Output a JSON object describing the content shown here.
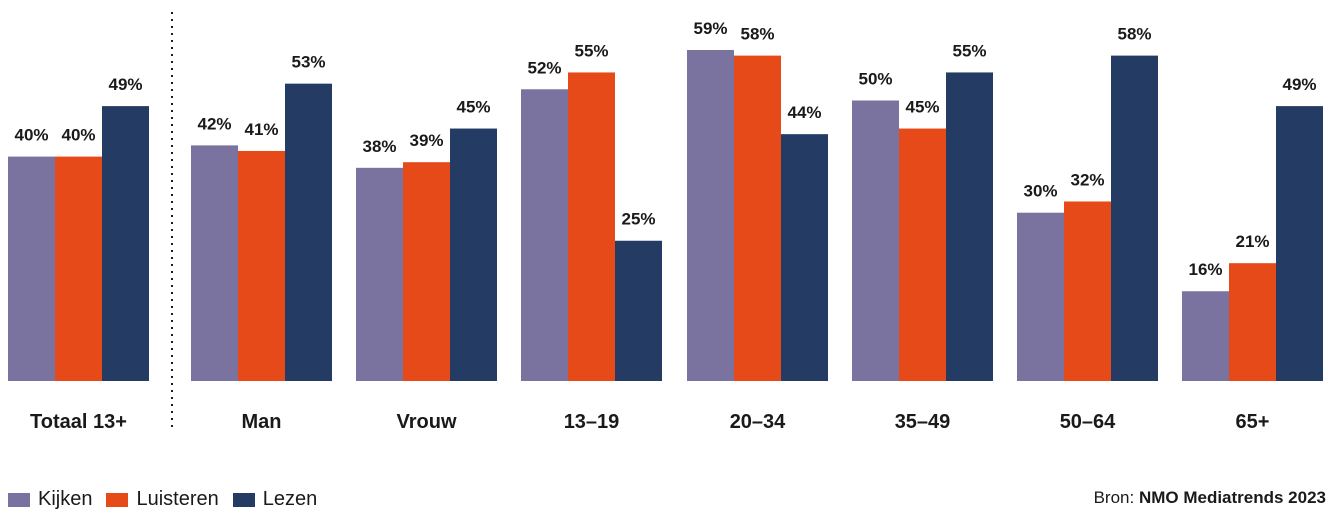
{
  "chart_data": {
    "type": "bar",
    "categories": [
      "Totaal 13+",
      "Man",
      "Vrouw",
      "13–19",
      "20–34",
      "35–49",
      "50–64",
      "65+"
    ],
    "series": [
      {
        "name": "Kijken",
        "color": "#7b739f",
        "values": [
          40,
          42,
          38,
          52,
          59,
          50,
          30,
          16
        ]
      },
      {
        "name": "Luisteren",
        "color": "#e64a19",
        "values": [
          40,
          41,
          39,
          55,
          58,
          45,
          32,
          21
        ]
      },
      {
        "name": "Lezen",
        "color": "#243c64",
        "values": [
          49,
          53,
          45,
          25,
          44,
          55,
          58,
          49
        ]
      }
    ],
    "value_suffix": "%",
    "ylim": [
      0,
      59
    ],
    "legend_position": "bottom-left",
    "grid": false
  },
  "source": {
    "prefix": "Bron: ",
    "name": "NMO Mediatrends 2023"
  }
}
